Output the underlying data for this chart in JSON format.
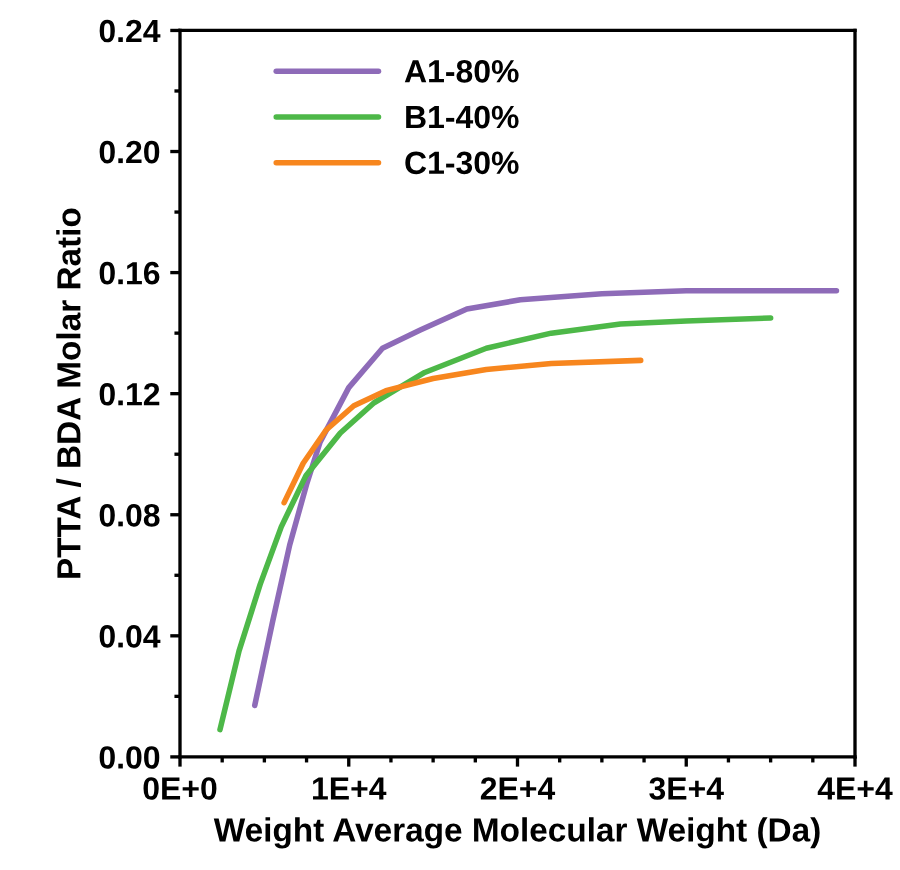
{
  "chart_data": {
    "type": "line",
    "xlabel": "Weight Average Molecular Weight (Da)",
    "ylabel": "PTTA / BDA Molar Ratio",
    "xlim": [
      0,
      40000
    ],
    "xticks": [
      {
        "value": 0,
        "label": "0E+0"
      },
      {
        "value": 10000,
        "label": "1E+4"
      },
      {
        "value": 20000,
        "label": "2E+4"
      },
      {
        "value": 30000,
        "label": "3E+4"
      },
      {
        "value": 40000,
        "label": "4E+4"
      }
    ],
    "ylim": [
      0,
      0.24
    ],
    "yticks": [
      {
        "value": 0,
        "label": "0.00"
      },
      {
        "value": 0.04,
        "label": "0.04"
      },
      {
        "value": 0.08,
        "label": "0.08"
      },
      {
        "value": 0.12,
        "label": "0.12"
      },
      {
        "value": 0.16,
        "label": "0.16"
      },
      {
        "value": 0.2,
        "label": "0.20"
      },
      {
        "value": 0.24,
        "label": "0.24"
      }
    ],
    "legend": "top left",
    "grid": false,
    "series": [
      {
        "name": "A1-80%",
        "color": "#8e6bb8",
        "x": [
          4430,
          5500,
          6500,
          7500,
          8300,
          10000,
          12000,
          14240,
          17000,
          20170,
          25000,
          30000,
          38900
        ],
        "values": [
          0.017,
          0.045,
          0.07,
          0.09,
          0.104,
          0.122,
          0.135,
          0.141,
          0.148,
          0.151,
          0.153,
          0.154,
          0.154
        ]
      },
      {
        "name": "B1-40%",
        "color": "#4db848",
        "x": [
          2370,
          3500,
          4750,
          6000,
          7470,
          9500,
          11500,
          14500,
          18150,
          22000,
          26100,
          30000,
          35000
        ],
        "values": [
          0.009,
          0.035,
          0.057,
          0.076,
          0.093,
          0.107,
          0.117,
          0.127,
          0.135,
          0.14,
          0.143,
          0.144,
          0.145
        ]
      },
      {
        "name": "C1-30%",
        "color": "#f7861e",
        "x": [
          6170,
          7300,
          8660,
          10300,
          12200,
          15000,
          18150,
          22000,
          27300
        ],
        "values": [
          0.084,
          0.097,
          0.108,
          0.116,
          0.121,
          0.125,
          0.128,
          0.13,
          0.131
        ]
      }
    ]
  }
}
